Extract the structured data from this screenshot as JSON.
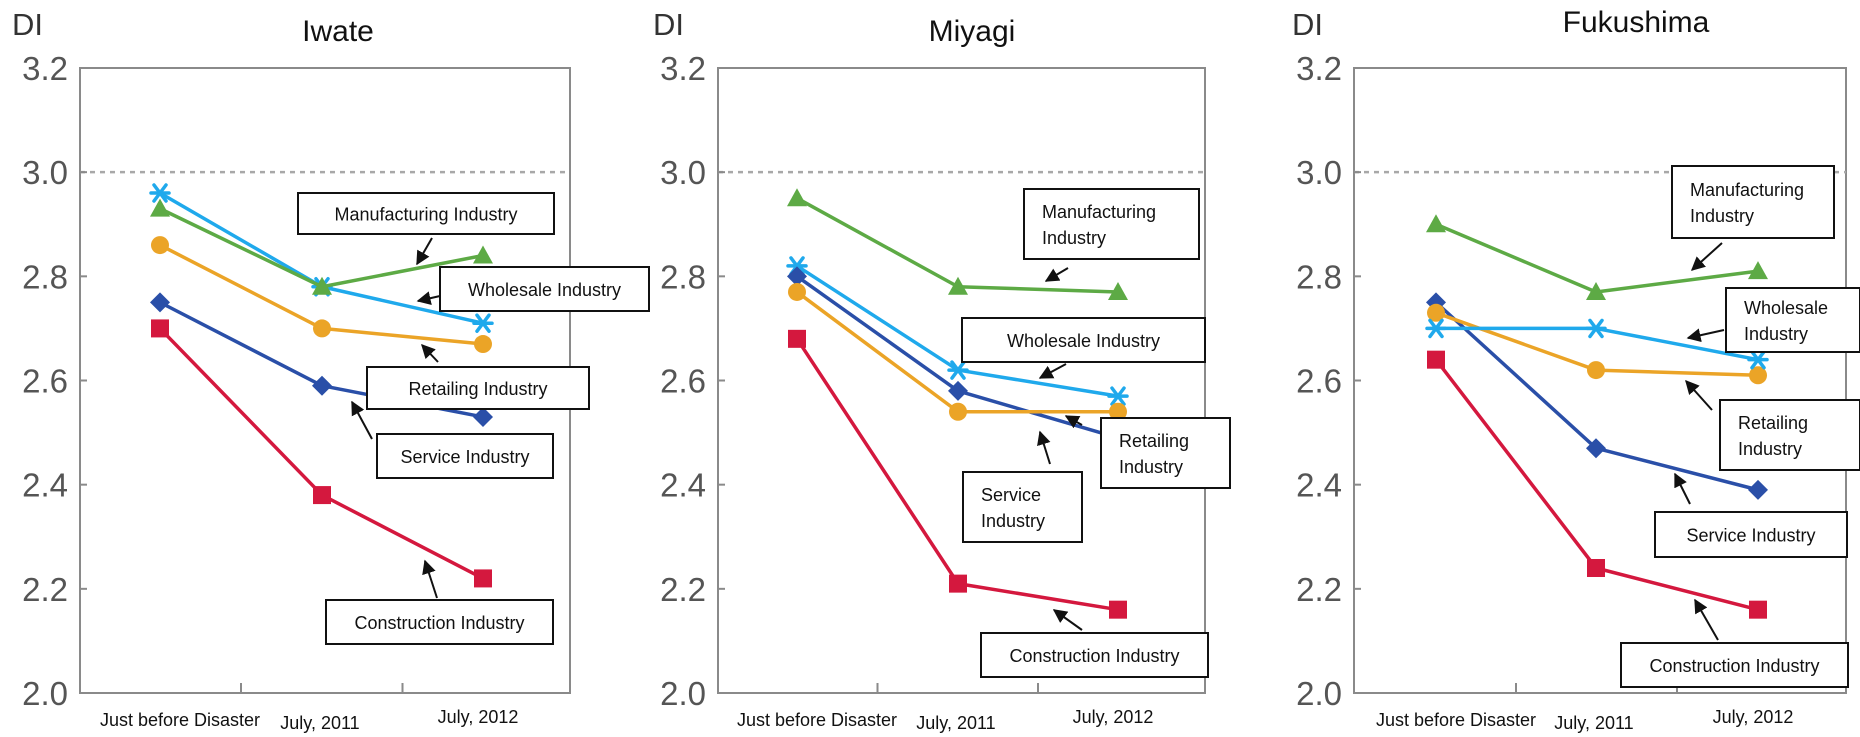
{
  "chart_data": [
    {
      "type": "line",
      "title": "Iwate",
      "ylabel": "DI",
      "categories": [
        "Just before Disaster",
        "July, 2011",
        "July, 2012"
      ],
      "yticks": [
        "2.0",
        "2.2",
        "2.4",
        "2.6",
        "2.8",
        "3.0",
        "3.2"
      ],
      "ylim": [
        2.0,
        3.2
      ],
      "reference_line": 3.0,
      "series": [
        {
          "name": "Wholesale Industry",
          "color": "#1fa9ec",
          "marker": "star",
          "values": [
            2.96,
            2.78,
            2.71
          ]
        },
        {
          "name": "Manufacturing Industry",
          "color": "#5daa45",
          "marker": "triangle",
          "values": [
            2.93,
            2.78,
            2.84
          ]
        },
        {
          "name": "Retailing Industry",
          "color": "#eba427",
          "marker": "circle",
          "values": [
            2.86,
            2.7,
            2.67
          ]
        },
        {
          "name": "Service Industry",
          "color": "#2a4fa8",
          "marker": "diamond",
          "values": [
            2.75,
            2.59,
            2.53
          ]
        },
        {
          "name": "Construction Industry",
          "color": "#d4183e",
          "marker": "square",
          "values": [
            2.7,
            2.38,
            2.22
          ]
        }
      ]
    },
    {
      "type": "line",
      "title": "Miyagi",
      "ylabel": "DI",
      "categories": [
        "Just before Disaster",
        "July, 2011",
        "July, 2012"
      ],
      "yticks": [
        "2.0",
        "2.2",
        "2.4",
        "2.6",
        "2.8",
        "3.0",
        "3.2"
      ],
      "ylim": [
        2.0,
        3.2
      ],
      "reference_line": 3.0,
      "series": [
        {
          "name": "Manufacturing Industry",
          "color": "#5daa45",
          "marker": "triangle",
          "values": [
            2.95,
            2.78,
            2.77
          ]
        },
        {
          "name": "Wholesale Industry",
          "color": "#1fa9ec",
          "marker": "star",
          "values": [
            2.82,
            2.62,
            2.57
          ]
        },
        {
          "name": "Service Industry",
          "color": "#2a4fa8",
          "marker": "diamond",
          "values": [
            2.8,
            2.58,
            2.49
          ]
        },
        {
          "name": "Retailing Industry",
          "color": "#eba427",
          "marker": "circle",
          "values": [
            2.77,
            2.54,
            2.54
          ]
        },
        {
          "name": "Construction Industry",
          "color": "#d4183e",
          "marker": "square",
          "values": [
            2.68,
            2.21,
            2.16
          ]
        }
      ]
    },
    {
      "type": "line",
      "title": "Fukushima",
      "ylabel": "DI",
      "categories": [
        "Just before Disaster",
        "July, 2011",
        "July, 2012"
      ],
      "yticks": [
        "2.0",
        "2.2",
        "2.4",
        "2.6",
        "2.8",
        "3.0",
        "3.2"
      ],
      "ylim": [
        2.0,
        3.2
      ],
      "reference_line": 3.0,
      "series": [
        {
          "name": "Manufacturing Industry",
          "color": "#5daa45",
          "marker": "triangle",
          "values": [
            2.9,
            2.77,
            2.81
          ]
        },
        {
          "name": "Service Industry",
          "color": "#2a4fa8",
          "marker": "diamond",
          "values": [
            2.75,
            2.47,
            2.39
          ]
        },
        {
          "name": "Retailing Industry",
          "color": "#eba427",
          "marker": "circle",
          "values": [
            2.73,
            2.62,
            2.61
          ]
        },
        {
          "name": "Wholesale Industry",
          "color": "#1fa9ec",
          "marker": "star",
          "values": [
            2.7,
            2.7,
            2.64
          ]
        },
        {
          "name": "Construction Industry",
          "color": "#d4183e",
          "marker": "square",
          "values": [
            2.64,
            2.24,
            2.16
          ]
        }
      ]
    }
  ]
}
